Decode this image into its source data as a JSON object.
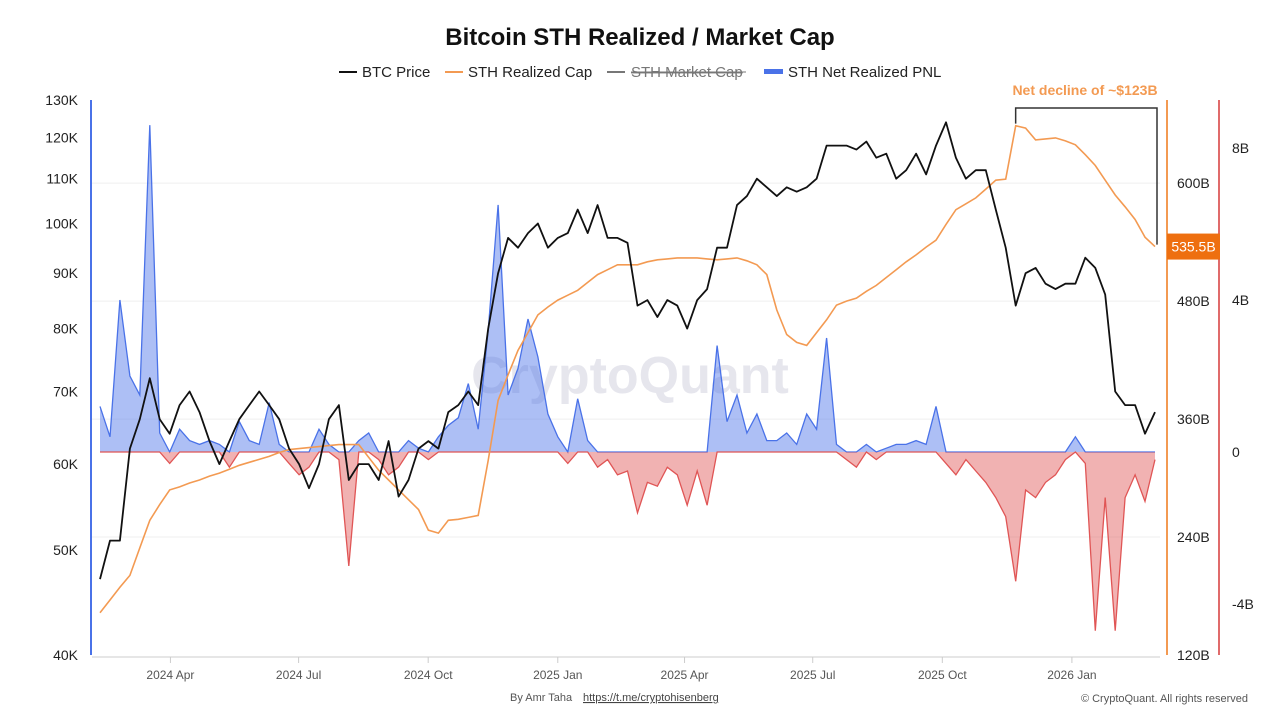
{
  "chart_data": {
    "type": "line",
    "title": "Bitcoin STH Realized / Market Cap",
    "legend": [
      {
        "name": "BTC Price",
        "color": "#111111",
        "hidden": false
      },
      {
        "name": "STH Realized Cap",
        "color": "#f39a52",
        "hidden": false
      },
      {
        "name": "STH Market Cap",
        "color": "#777777",
        "hidden": true
      },
      {
        "name": "STH Net Realized PNL",
        "color": "#4a72e8",
        "hidden": false
      }
    ],
    "legend_position": "top-center",
    "x_start": "2024-02-11",
    "x_end": "2026-03-01",
    "x_ticks": [
      {
        "label": "2024 Apr",
        "date": "2024-04-01"
      },
      {
        "label": "2024 Jul",
        "date": "2024-07-01"
      },
      {
        "label": "2024 Oct",
        "date": "2024-10-01"
      },
      {
        "label": "2025 Jan",
        "date": "2025-01-01"
      },
      {
        "label": "2025 Apr",
        "date": "2025-04-01"
      },
      {
        "label": "2025 Jul",
        "date": "2025-07-01"
      },
      {
        "label": "2025 Oct",
        "date": "2025-10-01"
      },
      {
        "label": "2026 Jan",
        "date": "2026-01-01"
      }
    ],
    "left_axis": {
      "scale": "log",
      "range": [
        40000,
        130000
      ],
      "ticks": [
        {
          "v": 40000,
          "label": "40K"
        },
        {
          "v": 50000,
          "label": "50K"
        },
        {
          "v": 60000,
          "label": "60K"
        },
        {
          "v": 70000,
          "label": "70K"
        },
        {
          "v": 80000,
          "label": "80K"
        },
        {
          "v": 90000,
          "label": "90K"
        },
        {
          "v": 100000,
          "label": "100K"
        },
        {
          "v": 110000,
          "label": "110K"
        },
        {
          "v": 120000,
          "label": "120K"
        },
        {
          "v": 130000,
          "label": "130K"
        }
      ]
    },
    "cap_axis": {
      "scale": "linear",
      "range": [
        120,
        684.6
      ],
      "unit": "B",
      "ticks": [
        {
          "v": 120,
          "label": "120B"
        },
        {
          "v": 240,
          "label": "240B"
        },
        {
          "v": 360,
          "label": "360B"
        },
        {
          "v": 480,
          "label": "480B"
        },
        {
          "v": 600,
          "label": "600B"
        }
      ]
    },
    "pnl_axis": {
      "scale": "linear",
      "range": [
        -5.34,
        9.26
      ],
      "unit": "B",
      "ticks": [
        {
          "v": -4,
          "label": "-4B"
        },
        {
          "v": 0,
          "label": "0"
        },
        {
          "v": 4,
          "label": "4B"
        },
        {
          "v": 8,
          "label": "8B"
        }
      ]
    },
    "series": [
      {
        "name": "BTC Price",
        "unit": "USD (thousands)",
        "values": [
          47,
          51,
          51,
          62,
          66,
          72,
          66,
          64,
          68,
          70,
          67,
          63,
          60,
          63,
          66,
          68,
          70,
          68,
          66,
          62,
          60,
          57,
          60,
          66,
          68,
          58,
          60,
          60,
          58,
          63,
          56,
          58,
          62,
          63,
          62,
          67,
          68,
          70,
          68,
          80,
          90,
          97,
          95,
          98,
          100,
          95,
          97,
          98,
          103,
          98,
          104,
          97,
          97,
          96,
          84,
          85,
          82,
          85,
          84,
          80,
          85,
          87,
          95,
          95,
          104,
          106,
          110,
          108,
          106,
          108,
          107,
          108,
          110,
          118,
          118,
          118,
          117,
          119,
          115,
          116,
          110,
          112,
          116,
          111,
          118,
          124,
          115,
          110,
          112,
          112,
          103,
          95,
          84,
          90,
          91,
          88,
          87,
          88,
          88,
          93,
          91,
          86,
          70,
          68,
          68,
          64,
          67
        ]
      },
      {
        "name": "STH Realized Cap",
        "unit": "USD billions",
        "values": [
          163,
          176,
          189,
          201,
          229,
          257,
          273,
          288,
          291,
          295,
          298,
          302,
          305,
          309,
          313,
          316,
          319,
          322,
          326,
          329,
          330,
          331,
          332,
          333,
          334,
          334,
          334,
          321,
          308,
          298,
          288,
          278,
          268,
          247,
          244,
          257,
          258,
          260,
          262,
          318,
          379,
          405,
          430,
          448,
          466,
          474,
          481,
          486,
          491,
          499,
          507,
          512,
          517,
          517,
          517,
          520,
          522,
          523,
          524,
          524,
          524,
          523,
          522,
          523,
          524,
          521,
          517,
          507,
          471,
          446,
          438,
          435,
          448,
          461,
          476,
          480,
          483,
          490,
          496,
          504,
          512,
          520,
          527,
          535,
          542,
          558,
          573,
          579,
          585,
          594,
          603,
          604,
          658.5,
          656,
          644,
          645,
          646,
          643,
          639,
          629,
          618,
          603,
          588,
          576,
          563,
          545,
          535.5
        ]
      },
      {
        "name": "STH Net Realized PNL",
        "unit": "USD billions",
        "values": [
          1.2,
          0.4,
          4.0,
          2.0,
          1.5,
          8.6,
          0.5,
          -0.3,
          0.6,
          0.3,
          0.2,
          0.3,
          0.2,
          -0.4,
          0.8,
          0.3,
          0.2,
          1.3,
          0.2,
          -0.3,
          -0.6,
          -0.4,
          0.6,
          0.2,
          -0.2,
          -3.0,
          0.3,
          0.5,
          -0.2,
          -0.6,
          -0.4,
          0.3,
          0.1,
          -0.2,
          0.4,
          0.7,
          0.9,
          1.8,
          0.6,
          3.2,
          6.5,
          1.5,
          2.2,
          3.5,
          2.5,
          1.0,
          0.4,
          -0.3,
          1.4,
          0.3,
          -0.4,
          -0.2,
          -0.6,
          -0.5,
          -1.6,
          -0.8,
          -0.9,
          -0.4,
          -0.6,
          -1.4,
          -0.5,
          -1.4,
          2.8,
          0.8,
          1.5,
          0.5,
          1.0,
          0.3,
          0.3,
          0.5,
          0.2,
          1.0,
          0.6,
          3.0,
          0.2,
          -0.2,
          -0.4,
          0.2,
          -0.2,
          0.1,
          0.2,
          0.2,
          0.3,
          0.2,
          1.2,
          -0.3,
          -0.6,
          -0.2,
          -0.5,
          -0.8,
          -1.2,
          -1.7,
          -3.4,
          -1.0,
          -1.2,
          -0.8,
          -0.6,
          -0.2,
          0.4,
          -0.3,
          -4.7,
          -1.2,
          -4.7,
          -1.2,
          -0.6,
          -1.3,
          -0.2
        ]
      }
    ],
    "annotation": {
      "text": "Net decline of ~$123B",
      "from_value": 658.5,
      "to_value": 535.5,
      "color": "#f39a52"
    },
    "last_value_badge": {
      "text": "535.5B",
      "value": 535.5,
      "color": "#ee6f10"
    },
    "watermark": "CryptoQuant",
    "colors": {
      "price": "#111111",
      "cap": "#f39a52",
      "pnl_pos": "#4a72e8",
      "pnl_neg": "#e05555",
      "left_axis": "#4a72e8",
      "cap_axis": "#f39a52",
      "pnl_axis": "#e06b6b"
    }
  },
  "footer": {
    "author_prefix": "By Amr Taha",
    "author_link": "https://t.me/cryptohisenberg",
    "copyright": "© CryptoQuant. All rights reserved"
  }
}
